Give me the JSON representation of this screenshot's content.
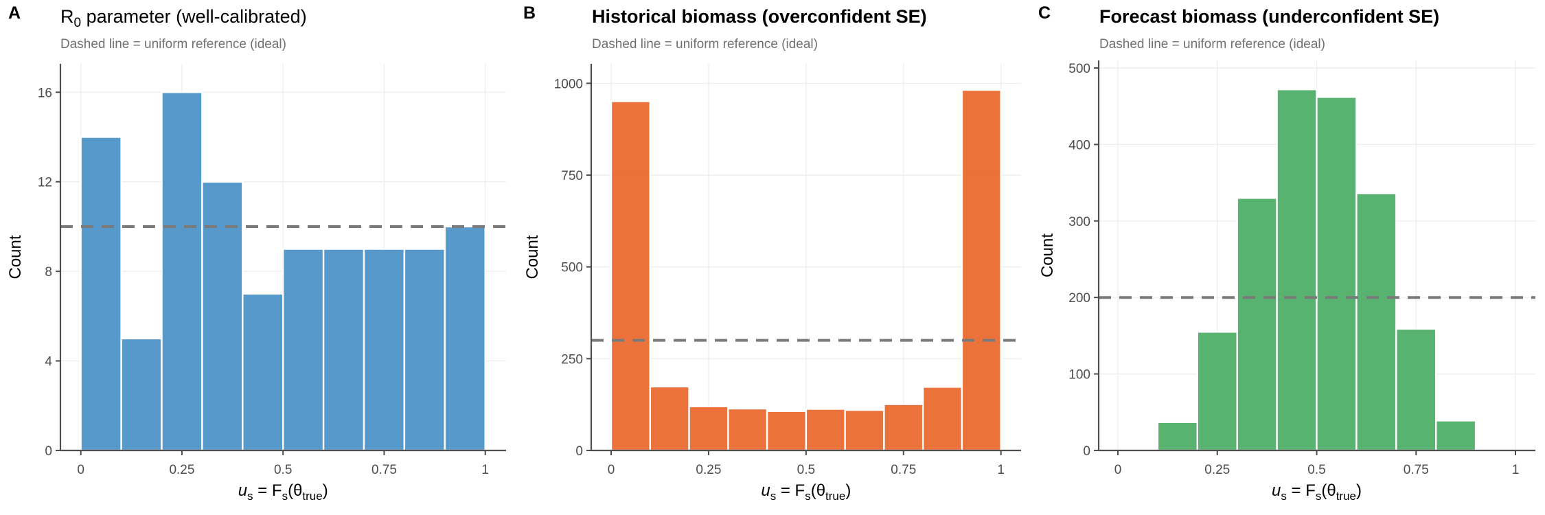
{
  "figure": {
    "panels": [
      {
        "tag": "A",
        "title_main": "R",
        "title_sub": "0",
        "title_rest": " parameter  (well-calibrated)",
        "title_bold": false,
        "subtitle": "Dashed line = uniform reference (ideal)",
        "color": "#4E94C8"
      },
      {
        "tag": "B",
        "title_main": "Historical biomass  (overconfident SE)",
        "title_sub": "",
        "title_rest": "",
        "title_bold": true,
        "subtitle": "Dashed line = uniform reference (ideal)",
        "color": "#EA6B30"
      },
      {
        "tag": "C",
        "title_main": "Forecast biomass  (underconfident SE)",
        "title_sub": "",
        "title_rest": "",
        "title_bold": true,
        "subtitle": "Dashed line = uniform reference (ideal)",
        "color": "#4FAF68"
      }
    ]
  },
  "chart_data": [
    {
      "type": "bar",
      "subtype": "histogram",
      "panel": "A",
      "title": "R0 parameter  (well-calibrated)",
      "subtitle": "Dashed line = uniform reference (ideal)",
      "xlabel": "u_s = F_s(θ_true)",
      "xlabel_parts": {
        "u": "u",
        "s1": "s",
        "eq": " = F",
        "s2": "s",
        "open": "(θ",
        "sub": "true",
        "close": ")"
      },
      "ylabel": "Count",
      "bin_edges": [
        0,
        0.1,
        0.2,
        0.3,
        0.4,
        0.5,
        0.6,
        0.7,
        0.8,
        0.9,
        1.0
      ],
      "values": [
        14,
        5,
        16,
        12,
        7,
        9,
        9,
        9,
        9,
        10
      ],
      "reference_line": 10,
      "xlim": [
        -0.05,
        1.05
      ],
      "ylim": [
        0,
        17.2
      ],
      "xticks": [
        0,
        0.25,
        0.5,
        0.75,
        1
      ],
      "xtick_labels": [
        "0",
        "0.25",
        "0.5",
        "0.75",
        "1"
      ],
      "yticks": [
        0,
        4,
        8,
        12,
        16
      ],
      "ytick_labels": [
        "0",
        "4",
        "8",
        "12",
        "16"
      ],
      "grid": true,
      "color": "#4E94C8"
    },
    {
      "type": "bar",
      "subtype": "histogram",
      "panel": "B",
      "title": "Historical biomass  (overconfident SE)",
      "subtitle": "Dashed line = uniform reference (ideal)",
      "xlabel": "u_s = F_s(θ_true)",
      "ylabel": "Count",
      "bin_edges": [
        0,
        0.1,
        0.2,
        0.3,
        0.4,
        0.5,
        0.6,
        0.7,
        0.8,
        0.9,
        1.0
      ],
      "values": [
        951,
        174,
        120,
        114,
        107,
        113,
        110,
        126,
        173,
        982
      ],
      "reference_line": 300,
      "xlim": [
        -0.05,
        1.05
      ],
      "ylim": [
        0,
        1060
      ],
      "xticks": [
        0,
        0.25,
        0.5,
        0.75,
        1
      ],
      "xtick_labels": [
        "0",
        "0.25",
        "0.5",
        "0.75",
        "1"
      ],
      "yticks": [
        0,
        250,
        500,
        750,
        1000
      ],
      "ytick_labels": [
        "0",
        "250",
        "500",
        "750",
        "1000"
      ],
      "grid": true,
      "color": "#EA6B30"
    },
    {
      "type": "bar",
      "subtype": "histogram",
      "panel": "C",
      "title": "Forecast biomass  (underconfident SE)",
      "subtitle": "Dashed line = uniform reference (ideal)",
      "xlabel": "u_s = F_s(θ_true)",
      "ylabel": "Count",
      "bin_edges": [
        0,
        0.1,
        0.2,
        0.3,
        0.4,
        0.5,
        0.6,
        0.7,
        0.8,
        0.9,
        1.0
      ],
      "values": [
        0,
        37,
        155,
        330,
        472,
        462,
        336,
        159,
        39,
        0
      ],
      "reference_line": 200,
      "xlim": [
        -0.05,
        1.05
      ],
      "ylim": [
        0,
        510
      ],
      "xticks": [
        0,
        0.25,
        0.5,
        0.75,
        1
      ],
      "xtick_labels": [
        "0",
        "0.25",
        "0.5",
        "0.75",
        "1"
      ],
      "yticks": [
        0,
        100,
        200,
        300,
        400,
        500
      ],
      "ytick_labels": [
        "0",
        "100",
        "200",
        "300",
        "400",
        "500"
      ],
      "grid": true,
      "color": "#4FAF68"
    }
  ]
}
